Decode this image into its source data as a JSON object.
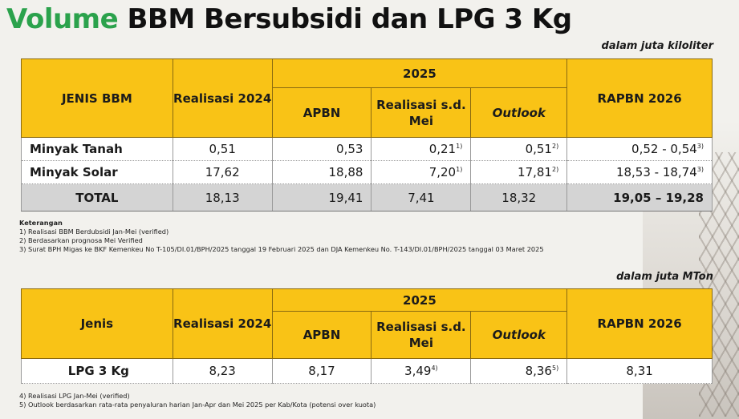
{
  "title": {
    "part1": "Volume",
    "part2": "BBM Bersubsidi dan LPG 3 Kg"
  },
  "colors": {
    "accent_green": "#2ba24c",
    "header_yellow": "#f9c316",
    "total_gray": "#d4d4d4"
  },
  "bbm": {
    "unit": "dalam juta kiloliter",
    "headers": {
      "jenis": "JENIS BBM",
      "realisasi_2024": "Realisasi 2024",
      "year_2025": "2025",
      "apbn": "APBN",
      "realisasi_sd": "Realisasi s.d. Mei",
      "outlook": "Outlook",
      "rapbn": "RAPBN 2026"
    },
    "rows": [
      {
        "name": "Minyak Tanah",
        "r2024": "0,51",
        "apbn": "0,53",
        "real": "0,21",
        "real_sup": "1)",
        "outlook": "0,51",
        "outlook_sup": "2)",
        "rapbn": "0,52 - 0,54",
        "rapbn_sup": "3)"
      },
      {
        "name": "Minyak Solar",
        "r2024": "17,62",
        "apbn": "18,88",
        "real": "7,20",
        "real_sup": "1)",
        "outlook": "17,81",
        "outlook_sup": "2)",
        "rapbn": "18,53 - 18,74",
        "rapbn_sup": "3)"
      }
    ],
    "total": {
      "name": "TOTAL",
      "r2024": "18,13",
      "apbn": "19,41",
      "real": "7,41",
      "outlook": "18,32",
      "rapbn": "19,05 – 19,28"
    },
    "notes_header": "Keterangan",
    "notes": [
      "1)   Realisasi BBM Berdubsidi Jan-Mei (verified)",
      "2)   Berdasarkan prognosa Mei Verified",
      "3)   Surat BPH Migas ke BKF Kemenkeu No T-105/DI.01/BPH/2025 tanggal 19 Februari 2025 dan DJA Kemenkeu No. T-143/DI.01/BPH/2025 tanggal 03 Maret 2025"
    ]
  },
  "lpg": {
    "unit": "dalam juta MTon",
    "headers": {
      "jenis": "Jenis",
      "realisasi_2024": "Realisasi 2024",
      "year_2025": "2025",
      "apbn": "APBN",
      "realisasi_sd": "Realisasi s.d. Mei",
      "outlook": "Outlook",
      "rapbn": "RAPBN 2026"
    },
    "row": {
      "name": "LPG 3 Kg",
      "r2024": "8,23",
      "apbn": "8,17",
      "real": "3,49",
      "real_sup": "4)",
      "outlook": "8,36",
      "outlook_sup": "5)",
      "rapbn": "8,31"
    },
    "notes": [
      "4)   Realisasi LPG Jan-Mei (verified)",
      "5)   Outlook berdasarkan rata-rata penyaluran harian Jan-Apr dan Mei 2025 per Kab/Kota (potensi over kuota)"
    ]
  }
}
